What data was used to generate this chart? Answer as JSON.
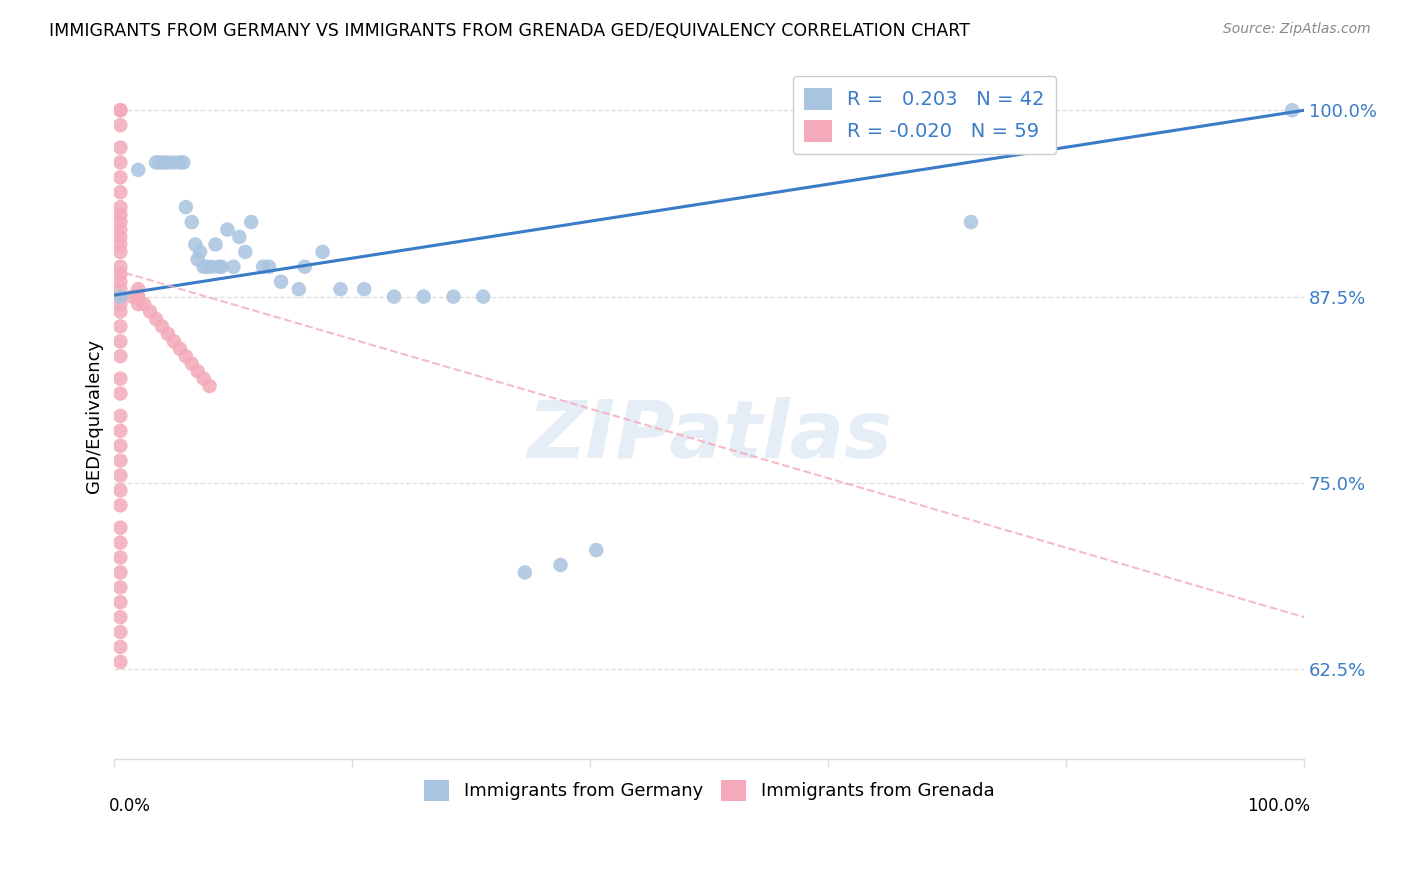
{
  "title": "IMMIGRANTS FROM GERMANY VS IMMIGRANTS FROM GRENADA GED/EQUIVALENCY CORRELATION CHART",
  "source": "Source: ZipAtlas.com",
  "ylabel": "GED/Equivalency",
  "xlim": [
    0.0,
    1.0
  ],
  "ylim": [
    0.565,
    1.025
  ],
  "yticks": [
    0.625,
    0.75,
    0.875,
    1.0
  ],
  "ytick_labels": [
    "62.5%",
    "75.0%",
    "87.5%",
    "100.0%"
  ],
  "blue_dot_color": "#A8C4E0",
  "pink_dot_color": "#F4AABA",
  "blue_line_color": "#3A7CC7",
  "pink_line_color": "#F4AABA",
  "tick_color": "#3A7CC7",
  "legend_r_eq": "R = ",
  "legend_blue_val": "0.203",
  "legend_blue_n": "N = 42",
  "legend_pink_val": "-0.020",
  "legend_pink_n": "N = 59",
  "watermark": "ZIPatlas",
  "blue_x": [
    0.005,
    0.02,
    0.035,
    0.038,
    0.042,
    0.045,
    0.05,
    0.055,
    0.058,
    0.06,
    0.065,
    0.068,
    0.07,
    0.072,
    0.075,
    0.078,
    0.082,
    0.085,
    0.088,
    0.09,
    0.095,
    0.1,
    0.105,
    0.11,
    0.115,
    0.125,
    0.13,
    0.14,
    0.155,
    0.16,
    0.175,
    0.19,
    0.21,
    0.235,
    0.26,
    0.285,
    0.31,
    0.345,
    0.375,
    0.405,
    0.72,
    0.99
  ],
  "blue_y": [
    0.875,
    0.96,
    0.965,
    0.965,
    0.965,
    0.965,
    0.965,
    0.965,
    0.965,
    0.935,
    0.925,
    0.91,
    0.9,
    0.905,
    0.895,
    0.895,
    0.895,
    0.91,
    0.895,
    0.895,
    0.92,
    0.895,
    0.915,
    0.905,
    0.925,
    0.895,
    0.895,
    0.885,
    0.88,
    0.895,
    0.905,
    0.88,
    0.88,
    0.875,
    0.875,
    0.875,
    0.875,
    0.69,
    0.695,
    0.705,
    0.925,
    1.0
  ],
  "pink_x": [
    0.005,
    0.005,
    0.005,
    0.005,
    0.005,
    0.005,
    0.005,
    0.005,
    0.005,
    0.005,
    0.005,
    0.005,
    0.005,
    0.005,
    0.005,
    0.005,
    0.005,
    0.005,
    0.005,
    0.005,
    0.005,
    0.005,
    0.005,
    0.005,
    0.005,
    0.005,
    0.005,
    0.005,
    0.005,
    0.005,
    0.005,
    0.005,
    0.005,
    0.005,
    0.005,
    0.005,
    0.005,
    0.005,
    0.005,
    0.005,
    0.005,
    0.005,
    0.005,
    0.015,
    0.02,
    0.02,
    0.02,
    0.025,
    0.03,
    0.035,
    0.04,
    0.045,
    0.05,
    0.055,
    0.06,
    0.065,
    0.07,
    0.075,
    0.08
  ],
  "pink_y": [
    1.0,
    1.0,
    0.99,
    0.975,
    0.965,
    0.955,
    0.945,
    0.935,
    0.93,
    0.925,
    0.92,
    0.915,
    0.91,
    0.905,
    0.895,
    0.89,
    0.885,
    0.88,
    0.875,
    0.87,
    0.865,
    0.855,
    0.845,
    0.835,
    0.82,
    0.81,
    0.795,
    0.785,
    0.775,
    0.765,
    0.755,
    0.745,
    0.735,
    0.72,
    0.71,
    0.7,
    0.69,
    0.68,
    0.67,
    0.66,
    0.65,
    0.64,
    0.63,
    0.875,
    0.88,
    0.875,
    0.87,
    0.87,
    0.865,
    0.86,
    0.855,
    0.85,
    0.845,
    0.84,
    0.835,
    0.83,
    0.825,
    0.82,
    0.815
  ],
  "blue_trendline_x": [
    0.0,
    1.0
  ],
  "blue_trendline_y": [
    0.876,
    1.0
  ],
  "pink_trendline_x": [
    0.0,
    1.0
  ],
  "pink_trendline_y": [
    0.893,
    0.66
  ],
  "grid_color": "#DDDDDD",
  "bottom_legend_labels": [
    "Immigrants from Germany",
    "Immigrants from Grenada"
  ]
}
